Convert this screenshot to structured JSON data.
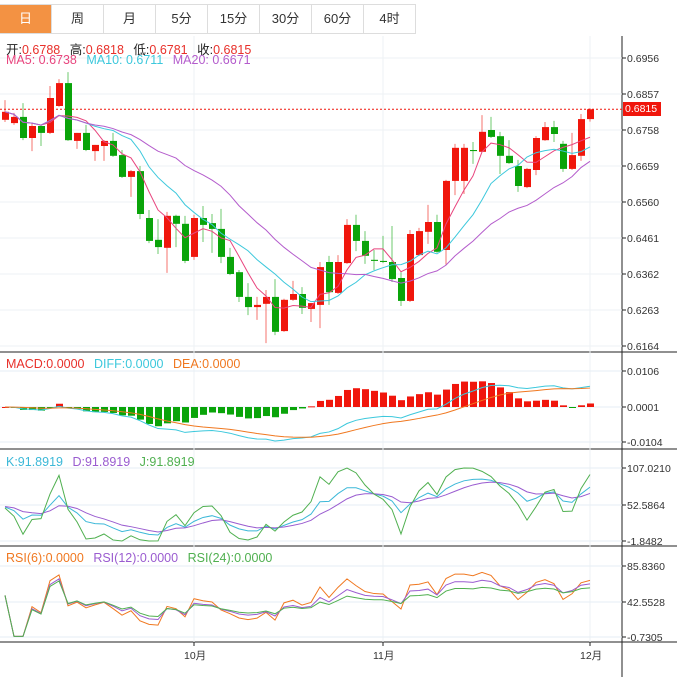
{
  "tabs": [
    "日",
    "周",
    "月",
    "5分",
    "15分",
    "30分",
    "60分",
    "4时"
  ],
  "active_tab": 0,
  "ohlc": {
    "open_label": "开:",
    "open": "0.6788",
    "high_label": "高:",
    "high": "0.6818",
    "low_label": "低:",
    "low": "0.6781",
    "close_label": "收:",
    "close": "0.6815"
  },
  "ma": {
    "ma5": "MA5: 0.6738",
    "ma10": "MA10: 0.6711",
    "ma20": "MA20: 0.6671"
  },
  "macd": {
    "macd": "MACD:0.0000",
    "diff": "DIFF:0.0000",
    "dea": "DEA:0.0000"
  },
  "kdj": {
    "k": "K:91.8919",
    "d": "D:91.8919",
    "j": "J:91.8919"
  },
  "rsi": {
    "r6": "RSI(6):0.0000",
    "r12": "RSI(12):0.0000",
    "r24": "RSI(24):0.0000"
  },
  "current_price": "0.6815",
  "colors": {
    "up": "#f0160c",
    "down": "#0aa40a",
    "ma5": "#e8457e",
    "ma10": "#3cc8dc",
    "ma20": "#b45ccc",
    "orange": "#f07820",
    "accent": "#f39243"
  },
  "chart_data": {
    "type": "candlestick",
    "price_ticks": [
      "0.6956",
      "0.6857",
      "0.6758",
      "0.6659",
      "0.6560",
      "0.6461",
      "0.6362",
      "0.6263",
      "0.6164"
    ],
    "macd_ticks": [
      "0.0106",
      "0.0001",
      "-0.0104"
    ],
    "kdj_ticks": [
      "107.0210",
      "52.5864",
      "-1.8482"
    ],
    "rsi_ticks": [
      "85.8360",
      "42.5528",
      "-0.7305"
    ],
    "x_labels": [
      {
        "label": "10月",
        "index": 21
      },
      {
        "label": "11月",
        "index": 42
      },
      {
        "label": "12月",
        "index": 65
      }
    ],
    "candles": [
      [
        0.6786,
        0.684,
        0.678,
        0.6808
      ],
      [
        0.6777,
        0.6805,
        0.6772,
        0.6794
      ],
      [
        0.6794,
        0.6832,
        0.673,
        0.6736
      ],
      [
        0.6736,
        0.6777,
        0.67,
        0.6769
      ],
      [
        0.6769,
        0.6772,
        0.6714,
        0.675
      ],
      [
        0.675,
        0.6879,
        0.6747,
        0.6846
      ],
      [
        0.6824,
        0.6898,
        0.6822,
        0.6887
      ],
      [
        0.6887,
        0.6917,
        0.6728,
        0.673
      ],
      [
        0.6728,
        0.675,
        0.6706,
        0.675
      ],
      [
        0.675,
        0.6772,
        0.67,
        0.6703
      ],
      [
        0.67,
        0.6717,
        0.6673,
        0.6717
      ],
      [
        0.6714,
        0.673,
        0.6673,
        0.6728
      ],
      [
        0.6728,
        0.675,
        0.6684,
        0.6687
      ],
      [
        0.6689,
        0.6703,
        0.6626,
        0.6629
      ],
      [
        0.6629,
        0.6648,
        0.6574,
        0.6645
      ],
      [
        0.6645,
        0.6659,
        0.6513,
        0.6527
      ],
      [
        0.6516,
        0.6538,
        0.6447,
        0.6453
      ],
      [
        0.6456,
        0.6513,
        0.6417,
        0.6436
      ],
      [
        0.6434,
        0.6533,
        0.6365,
        0.6522
      ],
      [
        0.6522,
        0.6525,
        0.6436,
        0.65
      ],
      [
        0.65,
        0.6522,
        0.6392,
        0.6398
      ],
      [
        0.6409,
        0.6525,
        0.6401,
        0.6516
      ],
      [
        0.6516,
        0.6549,
        0.645,
        0.6497
      ],
      [
        0.6502,
        0.6527,
        0.642,
        0.6486
      ],
      [
        0.6486,
        0.6541,
        0.6392,
        0.6409
      ],
      [
        0.6409,
        0.6434,
        0.6359,
        0.6362
      ],
      [
        0.6367,
        0.6373,
        0.6285,
        0.6299
      ],
      [
        0.6299,
        0.6337,
        0.6249,
        0.6271
      ],
      [
        0.6271,
        0.6299,
        0.6236,
        0.6277
      ],
      [
        0.628,
        0.6318,
        0.6172,
        0.6299
      ],
      [
        0.6299,
        0.6348,
        0.6194,
        0.6203
      ],
      [
        0.6205,
        0.6294,
        0.6203,
        0.6291
      ],
      [
        0.6291,
        0.6343,
        0.6288,
        0.6307
      ],
      [
        0.6307,
        0.6326,
        0.6252,
        0.6269
      ],
      [
        0.6266,
        0.6282,
        0.623,
        0.6282
      ],
      [
        0.6277,
        0.6395,
        0.6213,
        0.6381
      ],
      [
        0.6395,
        0.6412,
        0.6277,
        0.6312
      ],
      [
        0.631,
        0.6414,
        0.6307,
        0.6395
      ],
      [
        0.6392,
        0.6513,
        0.639,
        0.6497
      ],
      [
        0.6497,
        0.6525,
        0.6425,
        0.6453
      ],
      [
        0.6453,
        0.648,
        0.639,
        0.6412
      ],
      [
        0.6401,
        0.6428,
        0.6373,
        0.6398
      ],
      [
        0.6398,
        0.6467,
        0.6392,
        0.6395
      ],
      [
        0.6395,
        0.6494,
        0.634,
        0.6348
      ],
      [
        0.6351,
        0.6367,
        0.6274,
        0.6288
      ],
      [
        0.6288,
        0.6483,
        0.6285,
        0.6472
      ],
      [
        0.6414,
        0.6489,
        0.6412,
        0.648
      ],
      [
        0.6478,
        0.6552,
        0.6445,
        0.6505
      ],
      [
        0.6505,
        0.6525,
        0.642,
        0.6423
      ],
      [
        0.6428,
        0.6621,
        0.6387,
        0.6618
      ],
      [
        0.6618,
        0.672,
        0.6579,
        0.6709
      ],
      [
        0.6618,
        0.672,
        0.6582,
        0.6709
      ],
      [
        0.6703,
        0.6725,
        0.6665,
        0.67
      ],
      [
        0.6698,
        0.6799,
        0.6698,
        0.6753
      ],
      [
        0.6758,
        0.6794,
        0.6736,
        0.6739
      ],
      [
        0.6741,
        0.6753,
        0.6637,
        0.6687
      ],
      [
        0.6687,
        0.673,
        0.6665,
        0.6667
      ],
      [
        0.6659,
        0.6676,
        0.6588,
        0.6604
      ],
      [
        0.6601,
        0.6654,
        0.6598,
        0.6651
      ],
      [
        0.6648,
        0.6741,
        0.6634,
        0.6736
      ],
      [
        0.673,
        0.678,
        0.6728,
        0.6766
      ],
      [
        0.6766,
        0.6783,
        0.6725,
        0.6747
      ],
      [
        0.672,
        0.6728,
        0.6643,
        0.6651
      ],
      [
        0.6651,
        0.675,
        0.6648,
        0.6689
      ],
      [
        0.6687,
        0.6802,
        0.6673,
        0.6788
      ],
      [
        0.6788,
        0.6818,
        0.6781,
        0.6815
      ]
    ]
  }
}
